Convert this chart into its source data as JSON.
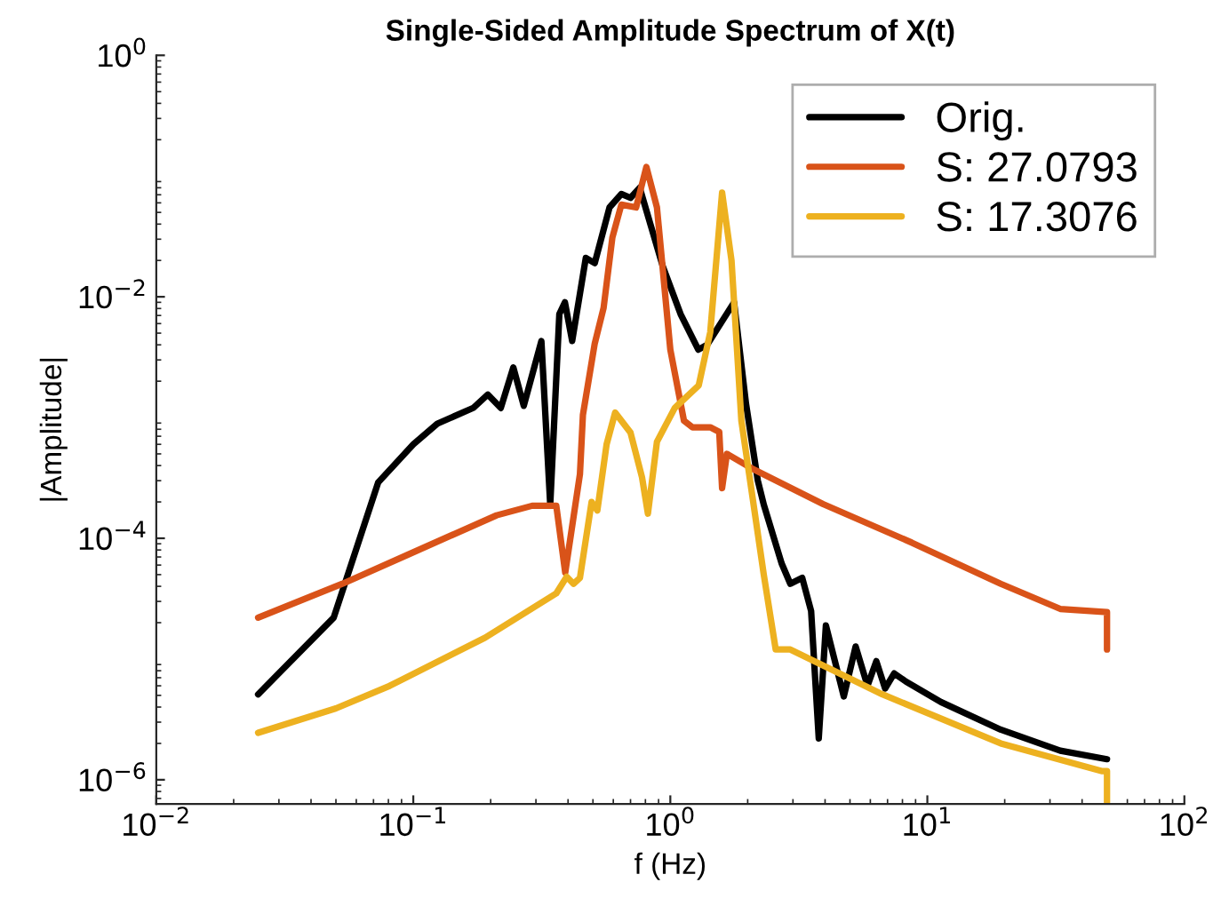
{
  "chart_data": {
    "type": "line",
    "title": "Single-Sided Amplitude Spectrum of X(t)",
    "xlabel": "f (Hz)",
    "ylabel": "|Amplitude|",
    "log": "xy",
    "xlim": [
      0.01,
      100
    ],
    "ylim": [
      6.3e-07,
      1
    ],
    "xticks": [
      {
        "value": 0.01,
        "label": "10$^{−2}$"
      },
      {
        "value": 0.1,
        "label": "10$^{−1}$"
      },
      {
        "value": 1,
        "label": "10$^{0}$"
      },
      {
        "value": 10,
        "label": "10$^{1}$"
      },
      {
        "value": 100,
        "label": "10$^{2}$"
      }
    ],
    "yticks": [
      {
        "value": 1e-06,
        "label": "10$^{−6}$"
      },
      {
        "value": 0.0001,
        "label": "10$^{−4}$"
      },
      {
        "value": 0.01,
        "label": "10$^{−2}$"
      },
      {
        "value": 1,
        "label": "10$^{0}$"
      }
    ],
    "grid": false,
    "legend": "top right",
    "line_style": "solid",
    "marker": "none",
    "series": [
      {
        "name": "Orig.",
        "color": "#000000",
        "x": [
          0.0249,
          0.049,
          0.073,
          0.1,
          0.124,
          0.171,
          0.195,
          0.219,
          0.245,
          0.269,
          0.315,
          0.341,
          0.37,
          0.389,
          0.415,
          0.469,
          0.508,
          0.58,
          0.645,
          0.7,
          0.76,
          0.935,
          1.096,
          1.285,
          1.39,
          1.77,
          1.97,
          2.19,
          2.31,
          2.71,
          2.93,
          3.26,
          3.53,
          3.78,
          4.03,
          4.73,
          5.26,
          5.85,
          6.33,
          6.85,
          7.43,
          8.26,
          11.3,
          19.3,
          32.9,
          50
        ],
        "values": [
          5.1e-06,
          2.2e-05,
          0.00029,
          0.0006,
          0.00089,
          0.0012,
          0.00155,
          0.0012,
          0.0026,
          0.00125,
          0.0043,
          0.00019,
          0.0072,
          0.009,
          0.0043,
          0.021,
          0.019,
          0.055,
          0.071,
          0.066,
          0.08,
          0.0178,
          0.0072,
          0.00365,
          0.004,
          0.009,
          0.0013,
          0.0003,
          0.00019,
          6.2e-05,
          4.2e-05,
          4.7e-05,
          2.5e-05,
          2.2e-06,
          1.9e-05,
          4.9e-06,
          1.27e-05,
          6e-06,
          9.6e-06,
          5.7e-06,
          7.6e-06,
          6.5e-06,
          4.4e-06,
          2.6e-06,
          1.74e-06,
          1.48e-06
        ]
      },
      {
        "name": "S: 27.0793",
        "color": "#d95319",
        "x": [
          0.0249,
          0.053,
          0.095,
          0.211,
          0.29,
          0.36,
          0.39,
          0.445,
          0.457,
          0.508,
          0.55,
          0.595,
          0.645,
          0.736,
          0.807,
          0.887,
          1.0,
          1.13,
          1.22,
          1.43,
          1.55,
          1.59,
          1.66,
          2.07,
          3.93,
          8.7,
          19.3,
          32.9,
          50,
          50
        ],
        "values": [
          2.2e-05,
          4.2e-05,
          7.3e-05,
          0.000155,
          0.000186,
          0.000186,
          5.2e-05,
          0.00034,
          0.00105,
          0.0041,
          0.0081,
          0.031,
          0.058,
          0.055,
          0.119,
          0.055,
          0.00365,
          0.00094,
          0.00083,
          0.00083,
          0.00076,
          0.00026,
          0.0005,
          0.00038,
          0.000192,
          9.2e-05,
          4.2e-05,
          2.6e-05,
          2.45e-05,
          1.2e-05
        ]
      },
      {
        "name": "S: 17.3076",
        "color": "#edb120",
        "x": [
          0.0249,
          0.05,
          0.081,
          0.19,
          0.36,
          0.395,
          0.42,
          0.445,
          0.494,
          0.52,
          0.565,
          0.61,
          0.7,
          0.776,
          0.818,
          0.887,
          1.04,
          1.29,
          1.43,
          1.59,
          1.73,
          1.89,
          2.31,
          2.57,
          2.93,
          6.68,
          19.3,
          47.6,
          50,
          50
        ],
        "values": [
          2.45e-06,
          3.9e-06,
          6e-06,
          1.5e-05,
          3.5e-05,
          4.8e-05,
          4.2e-05,
          4.7e-05,
          0.0002,
          0.00017,
          0.0006,
          0.0011,
          0.00075,
          0.00032,
          0.00016,
          0.00063,
          0.0012,
          0.00185,
          0.0051,
          0.073,
          0.02,
          0.00094,
          5e-05,
          1.2e-05,
          1.2e-05,
          5.1e-06,
          2e-06,
          1.18e-06,
          1.18e-06,
          6.5e-07
        ]
      }
    ]
  }
}
